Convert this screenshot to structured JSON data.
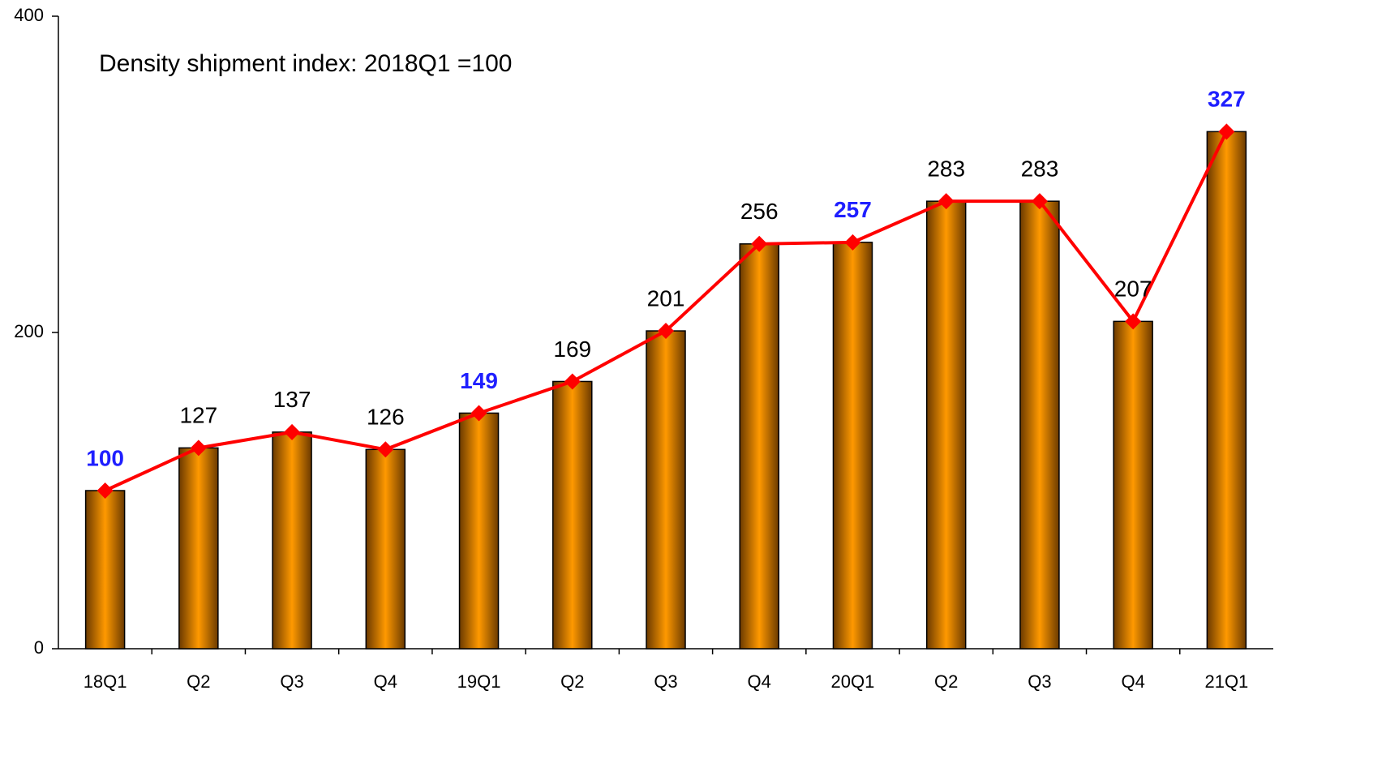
{
  "chart_data": {
    "type": "bar",
    "annotation": "Density shipment index: 2018Q1 =100",
    "categories": [
      "18Q1",
      "Q2",
      "Q3",
      "Q4",
      "19Q1",
      "Q2",
      "Q3",
      "Q4",
      "20Q1",
      "Q2",
      "Q3",
      "Q4",
      "21Q1"
    ],
    "values": [
      100,
      127,
      137,
      126,
      149,
      169,
      201,
      256,
      257,
      283,
      283,
      207,
      327
    ],
    "color": "#ff9900",
    "line_color": "#ff0000",
    "value_label_colors": [
      "#1f1fff",
      "#000000",
      "#000000",
      "#000000",
      "#1f1fff",
      "#000000",
      "#000000",
      "#000000",
      "#1f1fff",
      "#000000",
      "#000000",
      "#000000",
      "#1f1fff"
    ],
    "ylim": [
      0,
      400
    ],
    "yticks": [
      0,
      200,
      400
    ],
    "grid": false
  }
}
